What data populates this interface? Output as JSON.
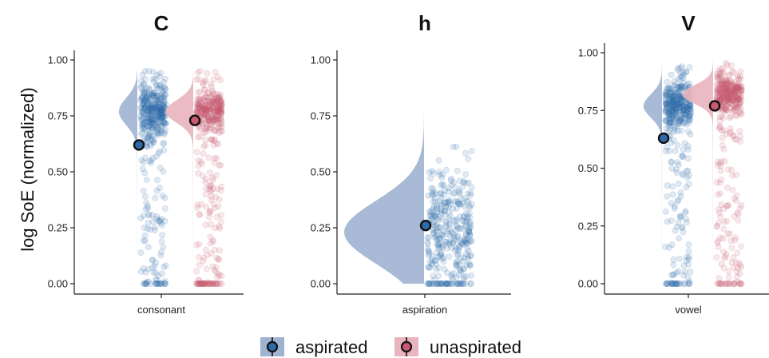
{
  "chart_data": {
    "type": "raincloud",
    "ylabel": "log SoE (normalized)",
    "yticks": [
      "0.00",
      "0.25",
      "0.50",
      "0.75",
      "1.00"
    ],
    "ylim": [
      0,
      1
    ],
    "colors": {
      "aspirated": "#2e6aa8",
      "aspirated_density": "#9fb3d1",
      "unaspirated": "#c75b70",
      "unaspirated_density": "#e8b4bd",
      "mean_marker_edge": "#111111"
    },
    "legend": {
      "position": "bottom",
      "entries": [
        {
          "key": "aspirated",
          "label": "aspirated"
        },
        {
          "key": "unaspirated",
          "label": "unaspirated"
        }
      ]
    },
    "panels": [
      {
        "title": "C",
        "xlabel": "consonant",
        "groups": [
          {
            "key": "aspirated",
            "mean": 0.62,
            "density_peak": 0.77,
            "spread": 0.06,
            "lower": 0.0,
            "upper": 0.95
          },
          {
            "key": "unaspirated",
            "mean": 0.73,
            "density_peak": 0.77,
            "spread": 0.05,
            "lower": 0.0,
            "upper": 0.95
          }
        ]
      },
      {
        "title": "h",
        "xlabel": "aspiration",
        "groups": [
          {
            "key": "aspirated",
            "mean": 0.26,
            "density_peak": 0.23,
            "spread": 0.14,
            "lower": 0.0,
            "upper": 0.78
          }
        ]
      },
      {
        "title": "V",
        "xlabel": "vowel",
        "groups": [
          {
            "key": "aspirated",
            "mean": 0.63,
            "density_peak": 0.77,
            "spread": 0.05,
            "lower": 0.0,
            "upper": 0.95
          },
          {
            "key": "unaspirated",
            "mean": 0.77,
            "density_peak": 0.82,
            "spread": 0.04,
            "lower": 0.0,
            "upper": 0.97
          }
        ]
      }
    ]
  }
}
